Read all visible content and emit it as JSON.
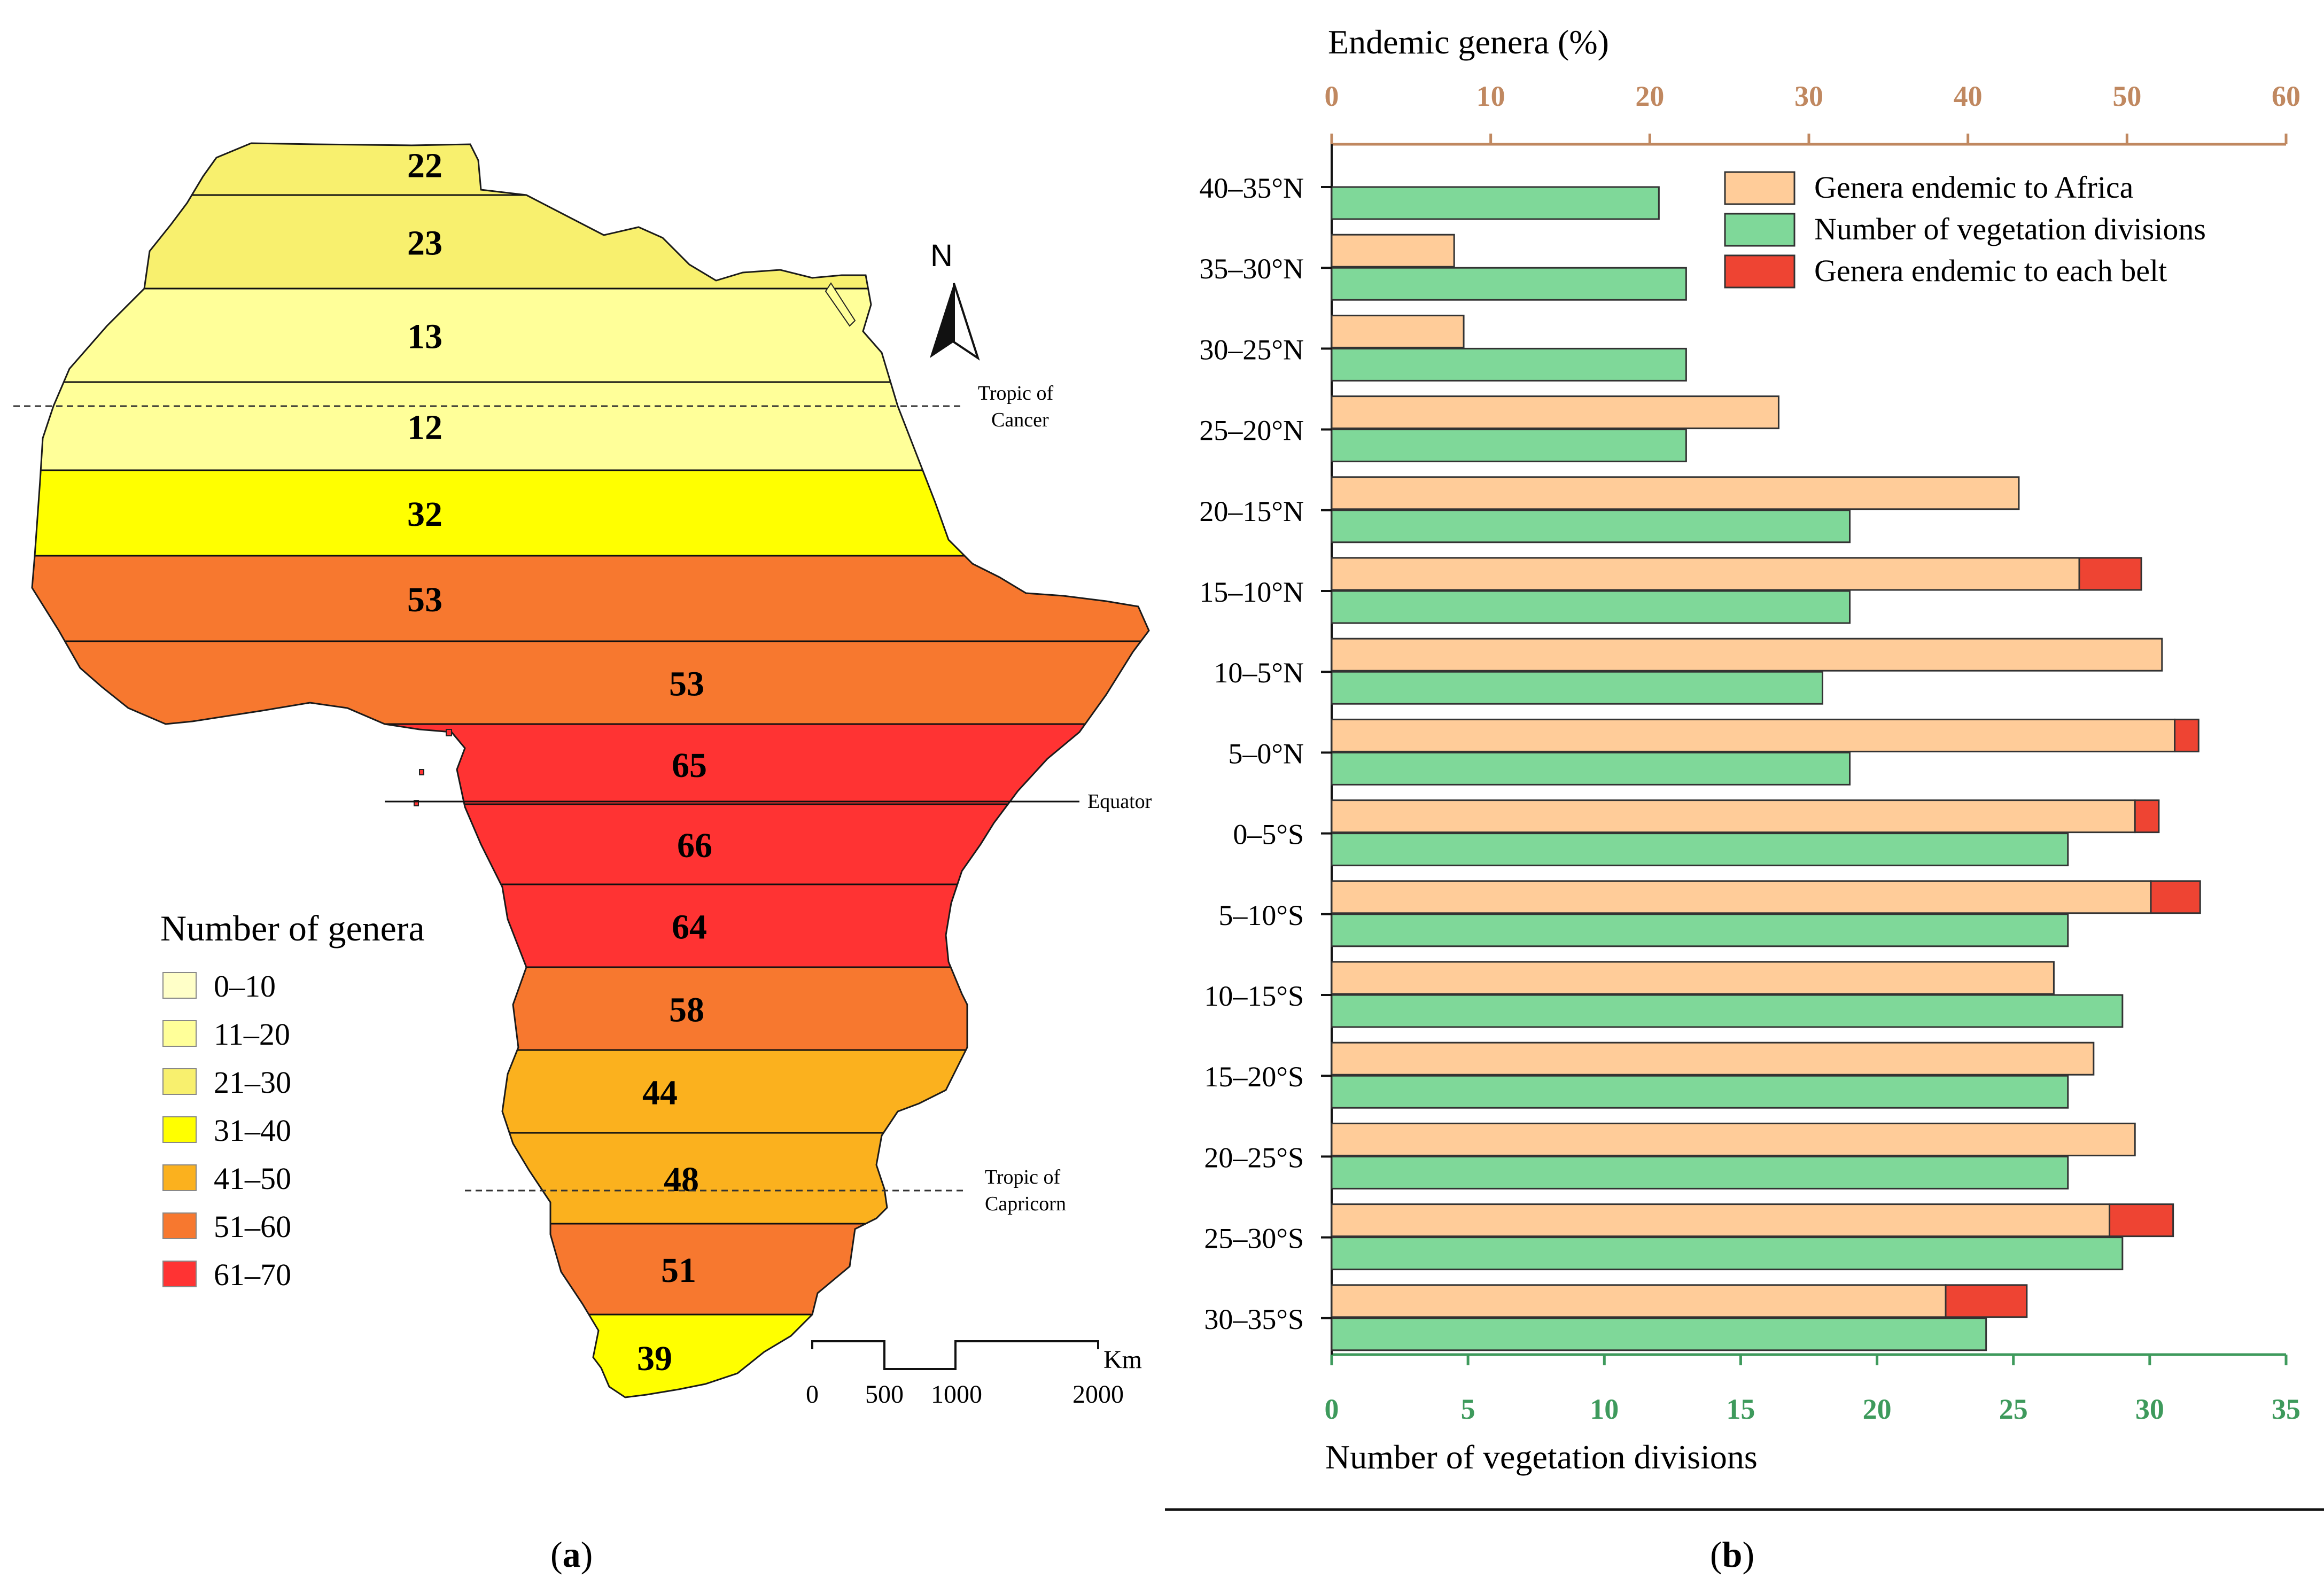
{
  "panel_a": {
    "caption_open": "(",
    "caption_letter": "a",
    "caption_close": ")",
    "north_label": "N",
    "tropic_cancer_line1": "Tropic of",
    "tropic_cancer_line2": "Cancer",
    "equator_label": "Equator",
    "tropic_capricorn_line1": "Tropic of",
    "tropic_capricorn_line2": "Capricorn",
    "legend_title": "Number of genera",
    "legend": [
      {
        "label": "0–10",
        "color": "#FFFFC8"
      },
      {
        "label": "11–20",
        "color": "#FFFF99"
      },
      {
        "label": "21–30",
        "color": "#F8F06E"
      },
      {
        "label": "31–40",
        "color": "#FFFF00"
      },
      {
        "label": "41–50",
        "color": "#FBB11E"
      },
      {
        "label": "51–60",
        "color": "#F7782F"
      },
      {
        "label": "61–70",
        "color": "#FF3333"
      }
    ],
    "scale": {
      "unit": "Km",
      "ticks": [
        "0",
        "500",
        "1000",
        "2000"
      ]
    },
    "bands": [
      {
        "label": "22",
        "color": "#F8F06E"
      },
      {
        "label": "23",
        "color": "#F8F06E"
      },
      {
        "label": "13",
        "color": "#FFFF99"
      },
      {
        "label": "12",
        "color": "#FFFF99"
      },
      {
        "label": "32",
        "color": "#FFFF00"
      },
      {
        "label": "53",
        "color": "#F7782F"
      },
      {
        "label": "53",
        "color": "#F7782F"
      },
      {
        "label": "65",
        "color": "#FF3333"
      },
      {
        "label": "66",
        "color": "#FF3333"
      },
      {
        "label": "64",
        "color": "#FF3333"
      },
      {
        "label": "58",
        "color": "#F7782F"
      },
      {
        "label": "44",
        "color": "#FBB11E"
      },
      {
        "label": "48",
        "color": "#FBB11E"
      },
      {
        "label": "51",
        "color": "#F7782F"
      },
      {
        "label": "39",
        "color": "#FFFF00"
      }
    ]
  },
  "chart_data": {
    "type": "bar",
    "orientation": "horizontal",
    "caption_open": "(",
    "caption_letter": "b",
    "caption_close": ")",
    "top_axis_label": "Endemic genera (%)",
    "top_axis_range": [
      0,
      60
    ],
    "top_axis_ticks": [
      "0",
      "10",
      "20",
      "30",
      "40",
      "50",
      "60"
    ],
    "bottom_axis_label": "Number of vegetation divisions",
    "bottom_axis_range": [
      0,
      35
    ],
    "bottom_axis_ticks": [
      "0",
      "5",
      "10",
      "15",
      "20",
      "25",
      "30",
      "35"
    ],
    "categories": [
      "40–35°N",
      "35–30°N",
      "30–25°N",
      "25–20°N",
      "20–15°N",
      "15–10°N",
      "10–5°N",
      "5–0°N",
      "0–5°S",
      "5–10°S",
      "10–15°S",
      "15–20°S",
      "20–25°S",
      "25–30°S",
      "30–35°S"
    ],
    "series": [
      {
        "name": "Genera endemic to Africa",
        "axis": "top",
        "color": "#FFCC99",
        "values": [
          0,
          7.7,
          8.3,
          28.1,
          43.2,
          47.0,
          52.2,
          53.0,
          50.5,
          51.5,
          45.4,
          47.9,
          50.5,
          48.9,
          38.6
        ]
      },
      {
        "name": "Number of vegetation divisions",
        "axis": "bottom",
        "color": "#7FD899",
        "values": [
          12,
          13,
          13,
          13,
          19,
          19,
          18,
          19,
          27,
          27,
          29,
          27,
          27,
          29,
          24
        ]
      },
      {
        "name": "Genera endemic to each belt",
        "axis": "top",
        "color": "#EE4433",
        "stacked_on": "Genera endemic to Africa",
        "values": [
          0,
          0,
          0,
          0,
          0,
          3.9,
          0,
          1.5,
          1.5,
          3.1,
          0,
          0,
          0,
          4.0,
          5.1
        ]
      }
    ],
    "legend_position": "top-right",
    "accent_top": "#C08860",
    "accent_bottom": "#3E9A5C"
  }
}
